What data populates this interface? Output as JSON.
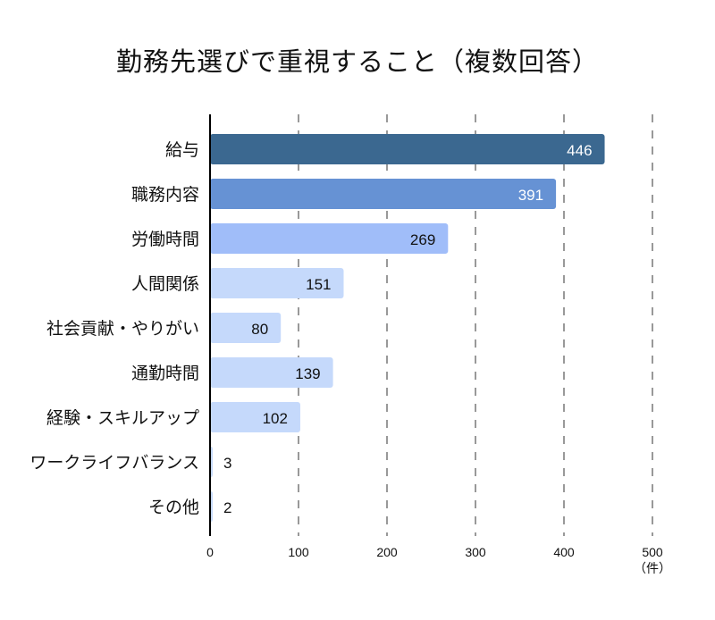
{
  "chart_data": {
    "type": "bar",
    "orientation": "horizontal",
    "title": "勤務先選びで重視すること（複数回答）",
    "categories": [
      "給与",
      "職務内容",
      "労働時間",
      "人間関係",
      "社会貢献・やりがい",
      "通勤時間",
      "経験・スキルアップ",
      "ワークライフバランス",
      "その他"
    ],
    "values": [
      446,
      391,
      269,
      151,
      80,
      139,
      102,
      3,
      2
    ],
    "colors": [
      "#3b6890",
      "#6692d4",
      "#a0bdf9",
      "#c5d9fb",
      "#c5d9fb",
      "#c5d9fb",
      "#c5d9fb",
      "#c5d9fb",
      "#c5d9fb"
    ],
    "label_colors": [
      "#ffffff",
      "#ffffff",
      "#111111",
      "#111111",
      "#111111",
      "#111111",
      "#111111",
      "#111111",
      "#111111"
    ],
    "xlim": [
      0,
      500
    ],
    "xticks": [
      0,
      100,
      200,
      300,
      400,
      500
    ],
    "xtick_labels": [
      "0",
      "100",
      "200",
      "300",
      "400",
      "500"
    ],
    "unit_label": "（件）",
    "xlabel": "",
    "ylabel": "",
    "grid": "vertical dashed",
    "legend": "none"
  }
}
